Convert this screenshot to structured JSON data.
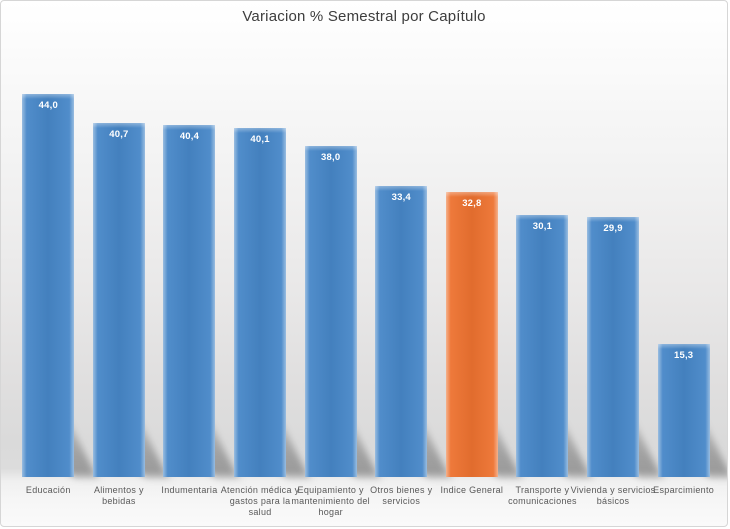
{
  "title": "Variacion % Semestral por Capítulo",
  "colors": {
    "bar_default": "#4787C8",
    "bar_highlight": "#ED7230",
    "value_label_text": "#FFFFFF",
    "category_label_text": "#595959",
    "title_text": "#3D3D3D",
    "background_top": "#FFFFFF",
    "background_mid": "#DADADA"
  },
  "chart_data": {
    "type": "bar",
    "title": "Variacion % Semestral por Capítulo",
    "categories": [
      "Educación",
      "Alimentos y bebidas",
      "Indumentaria",
      "Atención médica y gastos para la salud",
      "Equipamiento y mantenimiento del hogar",
      "Otros bienes y servicios",
      "Indice General",
      "Transporte y comunicaciones",
      "Vivienda y servicios básicos",
      "Esparcimiento"
    ],
    "values": [
      44.0,
      40.7,
      40.4,
      40.1,
      38.0,
      33.4,
      32.8,
      30.1,
      29.9,
      15.3
    ],
    "value_labels": [
      "44,0",
      "40,7",
      "40,4",
      "40,1",
      "38,0",
      "33,4",
      "32,8",
      "30,1",
      "29,9",
      "15,3"
    ],
    "highlight_index": 6,
    "highlight_category": "Indice General",
    "bar_color": "#4787C8",
    "highlight_color": "#ED7230",
    "xlabel": "",
    "ylabel": "",
    "ylim": [
      0,
      50
    ],
    "grid": false,
    "legend": false,
    "value_label_position": "inside-top",
    "bar_effects": "perspective-shadow-bottom-right"
  }
}
